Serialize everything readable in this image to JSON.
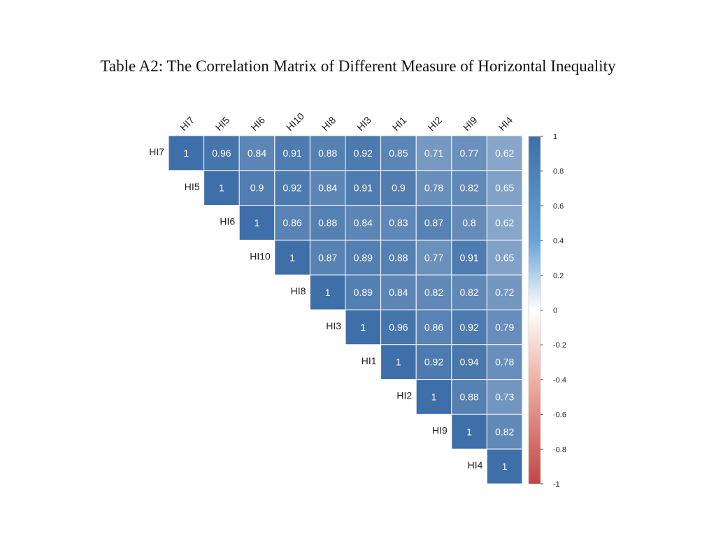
{
  "title": "Table A2: The Correlation Matrix of Different Measure of Horizontal Inequality",
  "chart_data": {
    "type": "heatmap",
    "variables": [
      "HI7",
      "HI5",
      "HI6",
      "HI10",
      "HI8",
      "HI3",
      "HI1",
      "HI2",
      "HI9",
      "HI4"
    ],
    "col_labels": [
      "HI7",
      "HI5",
      "HI6",
      "HI10",
      "HI8",
      "HI3",
      "HI1",
      "HI2",
      "HI9",
      "HI4"
    ],
    "row_labels": [
      "HI7",
      "HI5",
      "HI6",
      "HI10",
      "HI8",
      "HI3",
      "HI1",
      "HI2",
      "HI9",
      "HI4"
    ],
    "matrix_shape": "upper-triangular",
    "values": [
      [
        1,
        0.96,
        0.84,
        0.91,
        0.88,
        0.92,
        0.85,
        0.71,
        0.77,
        0.62
      ],
      [
        null,
        1,
        0.9,
        0.92,
        0.84,
        0.91,
        0.9,
        0.78,
        0.82,
        0.65
      ],
      [
        null,
        null,
        1,
        0.86,
        0.88,
        0.84,
        0.83,
        0.87,
        0.8,
        0.62
      ],
      [
        null,
        null,
        null,
        1,
        0.87,
        0.89,
        0.88,
        0.77,
        0.91,
        0.65
      ],
      [
        null,
        null,
        null,
        null,
        1,
        0.89,
        0.84,
        0.82,
        0.82,
        0.72
      ],
      [
        null,
        null,
        null,
        null,
        null,
        1,
        0.96,
        0.86,
        0.92,
        0.79
      ],
      [
        null,
        null,
        null,
        null,
        null,
        null,
        1,
        0.92,
        0.94,
        0.78
      ],
      [
        null,
        null,
        null,
        null,
        null,
        null,
        null,
        1,
        0.88,
        0.73
      ],
      [
        null,
        null,
        null,
        null,
        null,
        null,
        null,
        null,
        1,
        0.82
      ],
      [
        null,
        null,
        null,
        null,
        null,
        null,
        null,
        null,
        null,
        1
      ]
    ],
    "colorbar": {
      "range": [
        -1,
        1
      ],
      "ticks": [
        "1",
        "0.8",
        "0.6",
        "0.4",
        "0.2",
        "0",
        "-0.2",
        "-0.4",
        "-0.6",
        "-0.8",
        "-1"
      ],
      "colors": {
        "negative": "#c24545",
        "zero": "#ffffff",
        "positive": "#3e6fa8"
      }
    }
  }
}
